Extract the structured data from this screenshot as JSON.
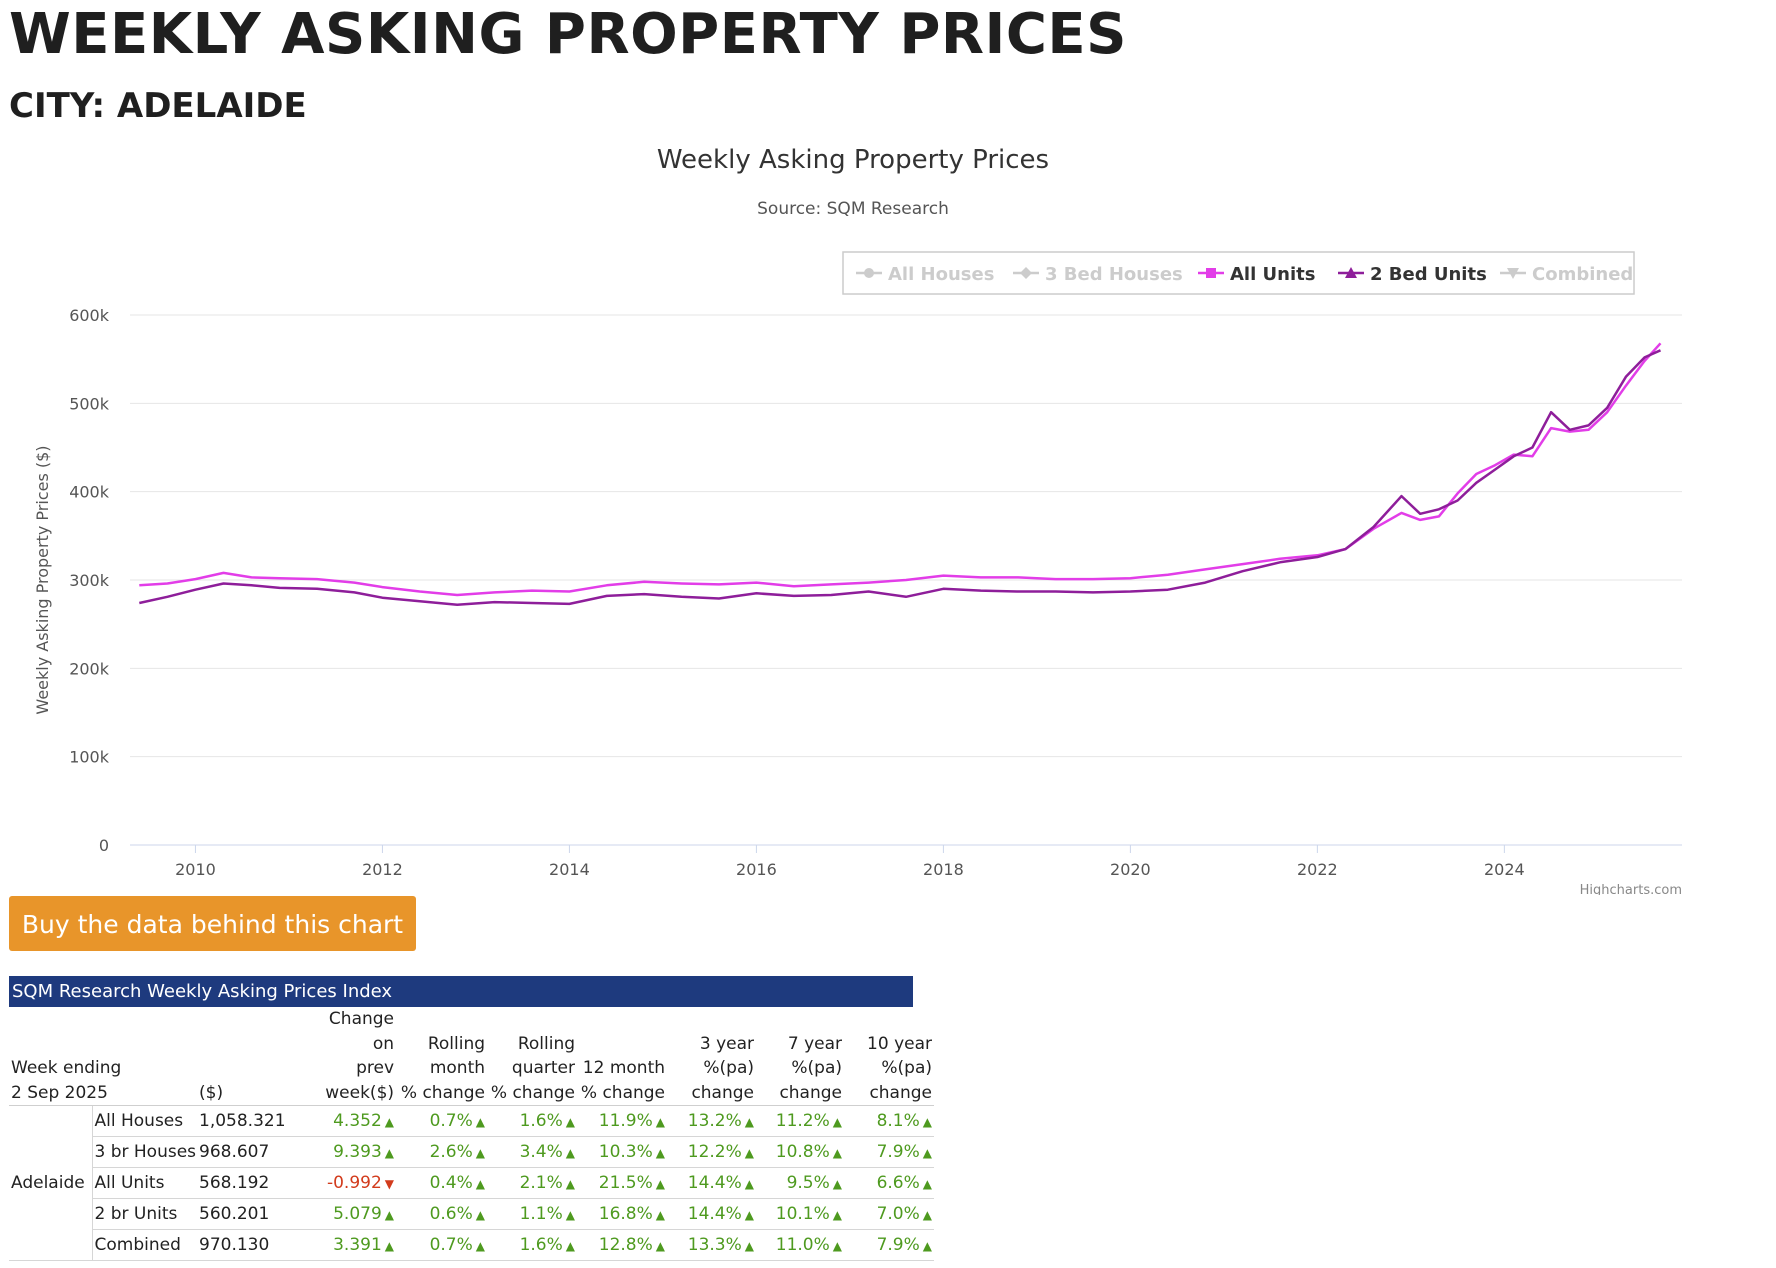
{
  "page": {
    "title": "WEEKLY ASKING PROPERTY PRICES",
    "subtitle": "CITY: ADELAIDE"
  },
  "chart_data": {
    "type": "line",
    "title": "Weekly Asking Property Prices",
    "subtitle": "Source: SQM Research",
    "xlabel": "",
    "ylabel": "Weekly Asking Property Prices ($)",
    "xlim": [
      2009.3,
      2025.9
    ],
    "ylim": [
      0,
      600000
    ],
    "x_ticks": [
      "2010",
      "2012",
      "2014",
      "2016",
      "2018",
      "2020",
      "2022",
      "2024"
    ],
    "y_ticks": [
      "0",
      "100k",
      "200k",
      "300k",
      "400k",
      "500k",
      "600k"
    ],
    "grid": true,
    "legend_position": "top-right",
    "legend": [
      {
        "name": "All Houses",
        "visible": false,
        "color": "#cccccc"
      },
      {
        "name": "3 Bed Houses",
        "visible": false,
        "color": "#cccccc"
      },
      {
        "name": "All Units",
        "visible": true,
        "color": "#e23de8"
      },
      {
        "name": "2 Bed Units",
        "visible": true,
        "color": "#8e1e9a"
      },
      {
        "name": "Combined",
        "visible": false,
        "color": "#cccccc"
      }
    ],
    "credit": "Highcharts.com",
    "series": [
      {
        "name": "All Units",
        "color": "#e23de8",
        "x": [
          2009.4,
          2009.7,
          2010.0,
          2010.3,
          2010.6,
          2010.9,
          2011.3,
          2011.7,
          2012.0,
          2012.4,
          2012.8,
          2013.2,
          2013.6,
          2014.0,
          2014.4,
          2014.8,
          2015.2,
          2015.6,
          2016.0,
          2016.4,
          2016.8,
          2017.2,
          2017.6,
          2018.0,
          2018.4,
          2018.8,
          2019.2,
          2019.6,
          2020.0,
          2020.4,
          2020.8,
          2021.2,
          2021.6,
          2022.0,
          2022.3,
          2022.6,
          2022.9,
          2023.1,
          2023.3,
          2023.5,
          2023.7,
          2023.9,
          2024.1,
          2024.3,
          2024.5,
          2024.7,
          2024.9,
          2025.1,
          2025.3,
          2025.5,
          2025.67
        ],
        "y": [
          294000,
          296000,
          301000,
          308000,
          303000,
          302000,
          301000,
          297000,
          292000,
          287000,
          283000,
          286000,
          288000,
          287000,
          294000,
          298000,
          296000,
          295000,
          297000,
          293000,
          295000,
          297000,
          300000,
          305000,
          303000,
          303000,
          301000,
          301000,
          302000,
          306000,
          312000,
          318000,
          324000,
          328000,
          335000,
          358000,
          376000,
          368000,
          372000,
          398000,
          420000,
          430000,
          442000,
          440000,
          472000,
          468000,
          470000,
          490000,
          520000,
          548000,
          568000
        ]
      },
      {
        "name": "2 Bed Units",
        "color": "#8e1e9a",
        "x": [
          2009.4,
          2009.7,
          2010.0,
          2010.3,
          2010.6,
          2010.9,
          2011.3,
          2011.7,
          2012.0,
          2012.4,
          2012.8,
          2013.2,
          2013.6,
          2014.0,
          2014.4,
          2014.8,
          2015.2,
          2015.6,
          2016.0,
          2016.4,
          2016.8,
          2017.2,
          2017.6,
          2018.0,
          2018.4,
          2018.8,
          2019.2,
          2019.6,
          2020.0,
          2020.4,
          2020.8,
          2021.2,
          2021.6,
          2022.0,
          2022.3,
          2022.6,
          2022.9,
          2023.1,
          2023.3,
          2023.5,
          2023.7,
          2023.9,
          2024.1,
          2024.3,
          2024.5,
          2024.7,
          2024.9,
          2025.1,
          2025.3,
          2025.5,
          2025.67
        ],
        "y": [
          274000,
          281000,
          289000,
          296000,
          294000,
          291000,
          290000,
          286000,
          280000,
          276000,
          272000,
          275000,
          274000,
          273000,
          282000,
          284000,
          281000,
          279000,
          285000,
          282000,
          283000,
          287000,
          281000,
          290000,
          288000,
          287000,
          287000,
          286000,
          287000,
          289000,
          297000,
          310000,
          320000,
          326000,
          335000,
          360000,
          395000,
          375000,
          380000,
          390000,
          410000,
          425000,
          440000,
          450000,
          490000,
          470000,
          475000,
          495000,
          530000,
          552000,
          560000
        ]
      }
    ]
  },
  "buy_button": {
    "label": "Buy the data behind this chart"
  },
  "table": {
    "title": "SQM Research Weekly Asking Prices Index",
    "week_label": "Week ending",
    "week_date": "2 Sep 2025",
    "headers": {
      "price": "($)",
      "change_week": [
        "Change",
        "on",
        "prev",
        "week($)"
      ],
      "rolling_month": [
        "Rolling",
        "month",
        "% change"
      ],
      "rolling_quarter": [
        "Rolling",
        "quarter",
        "% change"
      ],
      "month12": [
        "12 month",
        "% change"
      ],
      "year3": [
        "3 year",
        "%(pa)",
        "change"
      ],
      "year7": [
        "7 year",
        "%(pa)",
        "change"
      ],
      "year10": [
        "10 year",
        "%(pa)",
        "change"
      ]
    },
    "city": "Adelaide",
    "rows": [
      {
        "type": "All Houses",
        "price": "1,058.321",
        "week": "4.352",
        "week_dir": "up",
        "month": "0.7%",
        "quarter": "1.6%",
        "m12": "11.9%",
        "y3": "13.2%",
        "y7": "11.2%",
        "y10": "8.1%"
      },
      {
        "type": "3 br Houses",
        "price": "968.607",
        "week": "9.393",
        "week_dir": "up",
        "month": "2.6%",
        "quarter": "3.4%",
        "m12": "10.3%",
        "y3": "12.2%",
        "y7": "10.8%",
        "y10": "7.9%"
      },
      {
        "type": "All Units",
        "price": "568.192",
        "week": "-0.992",
        "week_dir": "down",
        "month": "0.4%",
        "quarter": "2.1%",
        "m12": "21.5%",
        "y3": "14.4%",
        "y7": "9.5%",
        "y10": "6.6%"
      },
      {
        "type": "2 br Units",
        "price": "560.201",
        "week": "5.079",
        "week_dir": "up",
        "month": "0.6%",
        "quarter": "1.1%",
        "m12": "16.8%",
        "y3": "14.4%",
        "y7": "10.1%",
        "y10": "7.0%"
      },
      {
        "type": "Combined",
        "price": "970.130",
        "week": "3.391",
        "week_dir": "up",
        "month": "0.7%",
        "quarter": "1.6%",
        "m12": "12.8%",
        "y3": "13.3%",
        "y7": "11.0%",
        "y10": "7.9%"
      }
    ]
  }
}
